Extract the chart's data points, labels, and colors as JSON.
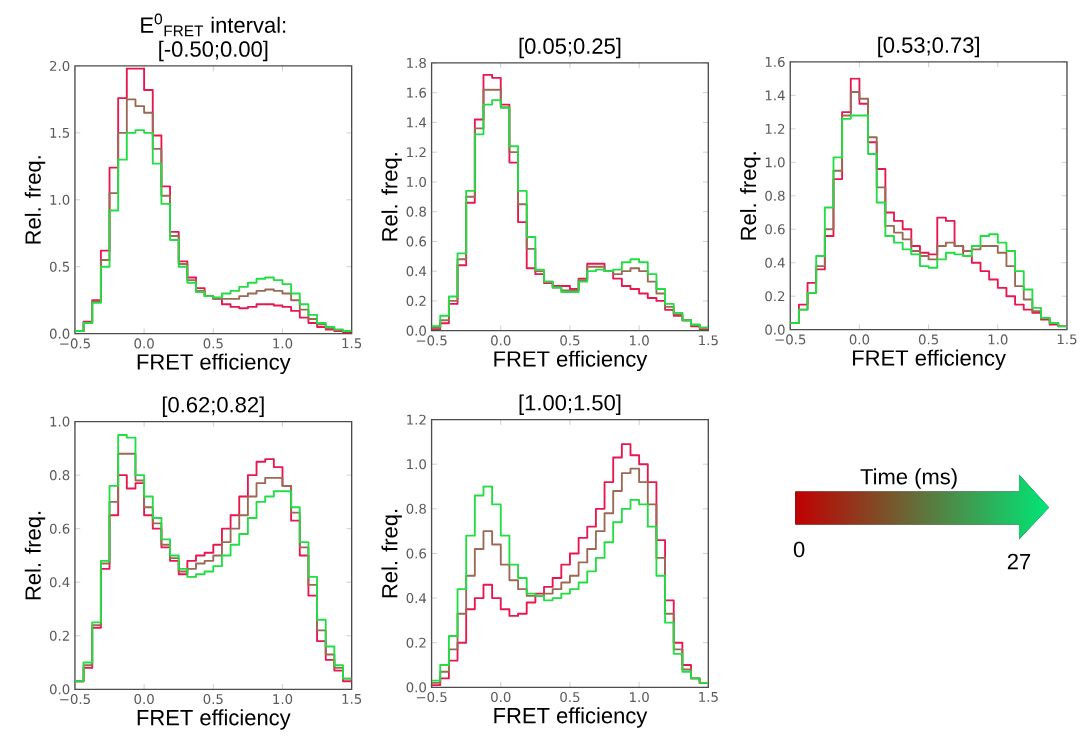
{
  "chart_data": [
    {
      "type": "histogram",
      "title": "E$^{0}$$_{FRET}$ interval:",
      "subtitle": "[-0.50;0.00]",
      "xlabel": "FRET efficiency",
      "ylabel": "Rel. freq.",
      "bins": [
        -0.5,
        -0.4375,
        -0.375,
        -0.3125,
        -0.25,
        -0.1875,
        -0.125,
        -0.0625,
        0,
        0.0625,
        0.125,
        0.1875,
        0.25,
        0.3125,
        0.375,
        0.4375,
        0.5,
        0.5625,
        0.625,
        0.6875,
        0.75,
        0.8125,
        0.875,
        0.9375,
        1,
        1.0625,
        1.125,
        1.1875,
        1.25,
        1.3125,
        1.375,
        1.4375,
        1.5
      ],
      "xlim": [
        -0.5,
        1.5
      ],
      "ylim": [
        0,
        2
      ],
      "xticks": [
        {
          "value": -0.5,
          "label": "−0.5"
        },
        {
          "value": 0,
          "label": "0.0"
        },
        {
          "value": 0.5,
          "label": "0.5"
        },
        {
          "value": 1,
          "label": "1.0"
        },
        {
          "value": 1.5,
          "label": "1.5"
        }
      ],
      "yticks": [
        {
          "value": 0,
          "label": "0.0"
        },
        {
          "value": 0.5,
          "label": "0.5"
        },
        {
          "value": 1,
          "label": "1.0"
        },
        {
          "value": 1.5,
          "label": "1.5"
        },
        {
          "value": 2,
          "label": "2.0"
        }
      ],
      "series": [
        {
          "color": "#e8174f",
          "values": [
            0.02,
            0.09,
            0.25,
            0.62,
            1.24,
            1.76,
            1.98,
            1.98,
            1.82,
            1.48,
            1.1,
            0.76,
            0.54,
            0.42,
            0.34,
            0.28,
            0.26,
            0.22,
            0.2,
            0.19,
            0.2,
            0.22,
            0.22,
            0.21,
            0.2,
            0.17,
            0.12,
            0.08,
            0.05,
            0.03,
            0.02,
            0.01
          ]
        },
        {
          "color": "#9a6a55",
          "values": [
            0.02,
            0.08,
            0.24,
            0.55,
            1.05,
            1.5,
            1.75,
            1.7,
            1.65,
            1.38,
            1.03,
            0.73,
            0.52,
            0.4,
            0.32,
            0.28,
            0.26,
            0.26,
            0.26,
            0.28,
            0.3,
            0.32,
            0.33,
            0.32,
            0.3,
            0.25,
            0.18,
            0.11,
            0.07,
            0.04,
            0.03,
            0.02
          ]
        },
        {
          "color": "#22dd44",
          "values": [
            0.02,
            0.08,
            0.23,
            0.5,
            0.92,
            1.3,
            1.5,
            1.52,
            1.5,
            1.27,
            0.97,
            0.7,
            0.5,
            0.38,
            0.31,
            0.28,
            0.27,
            0.3,
            0.32,
            0.35,
            0.38,
            0.41,
            0.42,
            0.4,
            0.37,
            0.3,
            0.22,
            0.14,
            0.08,
            0.05,
            0.03,
            0.02
          ]
        }
      ]
    },
    {
      "type": "histogram",
      "title": "[0.05;0.25]",
      "xlabel": "FRET efficiency",
      "ylabel": "Rel. freq.",
      "bins": [
        -0.5,
        -0.4375,
        -0.375,
        -0.3125,
        -0.25,
        -0.1875,
        -0.125,
        -0.0625,
        0,
        0.0625,
        0.125,
        0.1875,
        0.25,
        0.3125,
        0.375,
        0.4375,
        0.5,
        0.5625,
        0.625,
        0.6875,
        0.75,
        0.8125,
        0.875,
        0.9375,
        1,
        1.0625,
        1.125,
        1.1875,
        1.25,
        1.3125,
        1.375,
        1.4375,
        1.5
      ],
      "xlim": [
        -0.5,
        1.5
      ],
      "ylim": [
        0,
        1.8
      ],
      "xticks": [
        {
          "value": -0.5,
          "label": "−0.5"
        },
        {
          "value": 0,
          "label": "0.0"
        },
        {
          "value": 0.5,
          "label": "0.5"
        },
        {
          "value": 1,
          "label": "1.0"
        },
        {
          "value": 1.5,
          "label": "1.5"
        }
      ],
      "yticks": [
        {
          "value": 0,
          "label": "0.0"
        },
        {
          "value": 0.2,
          "label": "0.2"
        },
        {
          "value": 0.4,
          "label": "0.4"
        },
        {
          "value": 0.6,
          "label": "0.6"
        },
        {
          "value": 0.8,
          "label": "0.8"
        },
        {
          "value": 1,
          "label": "1.0"
        },
        {
          "value": 1.2,
          "label": "1.2"
        },
        {
          "value": 1.4,
          "label": "1.4"
        },
        {
          "value": 1.6,
          "label": "1.6"
        },
        {
          "value": 1.8,
          "label": "1.8"
        }
      ],
      "series": [
        {
          "color": "#e8174f",
          "values": [
            0.01,
            0.05,
            0.18,
            0.44,
            0.86,
            1.42,
            1.72,
            1.7,
            1.52,
            1.13,
            0.73,
            0.42,
            0.38,
            0.32,
            0.3,
            0.3,
            0.28,
            0.35,
            0.45,
            0.45,
            0.4,
            0.35,
            0.3,
            0.28,
            0.25,
            0.22,
            0.2,
            0.14,
            0.1,
            0.07,
            0.03,
            0.01
          ]
        },
        {
          "color": "#9a6a55",
          "values": [
            0.02,
            0.07,
            0.2,
            0.48,
            0.9,
            1.36,
            1.62,
            1.62,
            1.5,
            1.2,
            0.85,
            0.55,
            0.4,
            0.33,
            0.29,
            0.27,
            0.27,
            0.34,
            0.43,
            0.43,
            0.4,
            0.38,
            0.4,
            0.42,
            0.4,
            0.33,
            0.25,
            0.16,
            0.11,
            0.07,
            0.04,
            0.02
          ]
        },
        {
          "color": "#22dd44",
          "values": [
            0.03,
            0.1,
            0.23,
            0.52,
            0.94,
            1.32,
            1.52,
            1.55,
            1.5,
            1.24,
            0.94,
            0.63,
            0.41,
            0.33,
            0.29,
            0.26,
            0.26,
            0.33,
            0.4,
            0.41,
            0.4,
            0.41,
            0.46,
            0.48,
            0.46,
            0.38,
            0.28,
            0.18,
            0.12,
            0.07,
            0.04,
            0.02
          ]
        }
      ]
    },
    {
      "type": "histogram",
      "title": "[0.53;0.73]",
      "xlabel": "FRET efficiency",
      "ylabel": "Rel. freq.",
      "bins": [
        -0.5,
        -0.4375,
        -0.375,
        -0.3125,
        -0.25,
        -0.1875,
        -0.125,
        -0.0625,
        0,
        0.0625,
        0.125,
        0.1875,
        0.25,
        0.3125,
        0.375,
        0.4375,
        0.5,
        0.5625,
        0.625,
        0.6875,
        0.75,
        0.8125,
        0.875,
        0.9375,
        1,
        1.0625,
        1.125,
        1.1875,
        1.25,
        1.3125,
        1.375,
        1.4375,
        1.5
      ],
      "xlim": [
        -0.5,
        1.5
      ],
      "ylim": [
        0,
        1.6
      ],
      "xticks": [
        {
          "value": -0.5,
          "label": "−0.5"
        },
        {
          "value": 0,
          "label": "0.0"
        },
        {
          "value": 0.5,
          "label": "0.5"
        },
        {
          "value": 1,
          "label": "1.0"
        },
        {
          "value": 1.5,
          "label": "1.5"
        }
      ],
      "yticks": [
        {
          "value": 0,
          "label": "0.0"
        },
        {
          "value": 0.2,
          "label": "0.2"
        },
        {
          "value": 0.4,
          "label": "0.4"
        },
        {
          "value": 0.6,
          "label": "0.6"
        },
        {
          "value": 0.8,
          "label": "0.8"
        },
        {
          "value": 1,
          "label": "1.0"
        },
        {
          "value": 1.2,
          "label": "1.2"
        },
        {
          "value": 1.4,
          "label": "1.4"
        },
        {
          "value": 1.6,
          "label": "1.6"
        }
      ],
      "series": [
        {
          "color": "#e8174f",
          "values": [
            0.04,
            0.15,
            0.28,
            0.36,
            0.56,
            0.9,
            1.3,
            1.5,
            1.35,
            1.12,
            0.96,
            0.7,
            0.65,
            0.6,
            0.5,
            0.46,
            0.45,
            0.67,
            0.65,
            0.5,
            0.44,
            0.4,
            0.35,
            0.3,
            0.25,
            0.2,
            0.15,
            0.12,
            0.1,
            0.06,
            0.03,
            0.02
          ]
        },
        {
          "color": "#9a6a55",
          "values": [
            0.04,
            0.12,
            0.22,
            0.38,
            0.6,
            0.95,
            1.28,
            1.42,
            1.38,
            1.15,
            0.85,
            0.62,
            0.58,
            0.54,
            0.47,
            0.44,
            0.42,
            0.5,
            0.52,
            0.5,
            0.47,
            0.48,
            0.5,
            0.5,
            0.46,
            0.38,
            0.26,
            0.18,
            0.11,
            0.07,
            0.04,
            0.02
          ]
        },
        {
          "color": "#22dd44",
          "values": [
            0.04,
            0.12,
            0.22,
            0.44,
            0.73,
            1.03,
            1.26,
            1.28,
            1.28,
            1.05,
            0.76,
            0.56,
            0.52,
            0.48,
            0.45,
            0.38,
            0.37,
            0.42,
            0.46,
            0.45,
            0.44,
            0.5,
            0.56,
            0.57,
            0.52,
            0.47,
            0.35,
            0.24,
            0.13,
            0.07,
            0.04,
            0.02
          ]
        }
      ]
    },
    {
      "type": "histogram",
      "title": "[0.62;0.82]",
      "xlabel": "FRET efficiency",
      "ylabel": "Rel. freq.",
      "bins": [
        -0.5,
        -0.4375,
        -0.375,
        -0.3125,
        -0.25,
        -0.1875,
        -0.125,
        -0.0625,
        0,
        0.0625,
        0.125,
        0.1875,
        0.25,
        0.3125,
        0.375,
        0.4375,
        0.5,
        0.5625,
        0.625,
        0.6875,
        0.75,
        0.8125,
        0.875,
        0.9375,
        1,
        1.0625,
        1.125,
        1.1875,
        1.25,
        1.3125,
        1.375,
        1.4375,
        1.5
      ],
      "xlim": [
        -0.5,
        1.5
      ],
      "ylim": [
        0,
        1
      ],
      "xticks": [
        {
          "value": -0.5,
          "label": "−0.5"
        },
        {
          "value": 0,
          "label": "0.0"
        },
        {
          "value": 0.5,
          "label": "0.5"
        },
        {
          "value": 1,
          "label": "1.0"
        },
        {
          "value": 1.5,
          "label": "1.5"
        }
      ],
      "yticks": [
        {
          "value": 0,
          "label": "0.0"
        },
        {
          "value": 0.2,
          "label": "0.2"
        },
        {
          "value": 0.4,
          "label": "0.4"
        },
        {
          "value": 0.6,
          "label": "0.6"
        },
        {
          "value": 0.8,
          "label": "0.8"
        },
        {
          "value": 1,
          "label": "1.0"
        }
      ],
      "series": [
        {
          "color": "#e8174f",
          "values": [
            0.03,
            0.08,
            0.23,
            0.45,
            0.65,
            0.8,
            0.75,
            0.77,
            0.65,
            0.6,
            0.53,
            0.48,
            0.43,
            0.48,
            0.5,
            0.51,
            0.54,
            0.6,
            0.65,
            0.72,
            0.8,
            0.85,
            0.86,
            0.83,
            0.76,
            0.63,
            0.5,
            0.35,
            0.18,
            0.11,
            0.07,
            0.03
          ]
        },
        {
          "color": "#9a6a55",
          "values": [
            0.03,
            0.09,
            0.24,
            0.47,
            0.7,
            0.88,
            0.88,
            0.78,
            0.68,
            0.62,
            0.54,
            0.49,
            0.44,
            0.45,
            0.47,
            0.48,
            0.5,
            0.55,
            0.6,
            0.65,
            0.72,
            0.77,
            0.79,
            0.79,
            0.76,
            0.66,
            0.53,
            0.39,
            0.22,
            0.13,
            0.08,
            0.04
          ]
        },
        {
          "color": "#22dd44",
          "values": [
            0.03,
            0.1,
            0.25,
            0.48,
            0.76,
            0.95,
            0.94,
            0.8,
            0.72,
            0.64,
            0.56,
            0.5,
            0.45,
            0.42,
            0.43,
            0.44,
            0.46,
            0.5,
            0.54,
            0.58,
            0.64,
            0.7,
            0.72,
            0.74,
            0.74,
            0.68,
            0.55,
            0.42,
            0.26,
            0.16,
            0.09,
            0.04
          ]
        }
      ]
    },
    {
      "type": "histogram",
      "title": "[1.00;1.50]",
      "xlabel": "FRET efficiency",
      "ylabel": "Rel. freq.",
      "bins": [
        -0.5,
        -0.4375,
        -0.375,
        -0.3125,
        -0.25,
        -0.1875,
        -0.125,
        -0.0625,
        0,
        0.0625,
        0.125,
        0.1875,
        0.25,
        0.3125,
        0.375,
        0.4375,
        0.5,
        0.5625,
        0.625,
        0.6875,
        0.75,
        0.8125,
        0.875,
        0.9375,
        1,
        1.0625,
        1.125,
        1.1875,
        1.25,
        1.3125,
        1.375,
        1.4375,
        1.5
      ],
      "xlim": [
        -0.5,
        1.5
      ],
      "ylim": [
        0,
        1.2
      ],
      "xticks": [
        {
          "value": -0.5,
          "label": "−0.5"
        },
        {
          "value": 0,
          "label": "0.0"
        },
        {
          "value": 0.5,
          "label": "0.5"
        },
        {
          "value": 1,
          "label": "1.0"
        },
        {
          "value": 1.5,
          "label": "1.5"
        }
      ],
      "yticks": [
        {
          "value": 0,
          "label": "0.0"
        },
        {
          "value": 0.2,
          "label": "0.2"
        },
        {
          "value": 0.4,
          "label": "0.4"
        },
        {
          "value": 0.6,
          "label": "0.6"
        },
        {
          "value": 0.8,
          "label": "0.8"
        },
        {
          "value": 1,
          "label": "1.0"
        },
        {
          "value": 1.2,
          "label": "1.2"
        }
      ],
      "series": [
        {
          "color": "#e8174f",
          "values": [
            0.01,
            0.04,
            0.12,
            0.2,
            0.35,
            0.4,
            0.46,
            0.4,
            0.35,
            0.32,
            0.33,
            0.38,
            0.42,
            0.45,
            0.49,
            0.55,
            0.6,
            0.67,
            0.72,
            0.8,
            0.92,
            1.03,
            1.09,
            1.04,
            1.0,
            0.92,
            0.66,
            0.39,
            0.2,
            0.1,
            0.04,
            0.02
          ]
        },
        {
          "color": "#9a6a55",
          "values": [
            0.02,
            0.07,
            0.17,
            0.33,
            0.5,
            0.62,
            0.7,
            0.64,
            0.55,
            0.48,
            0.44,
            0.41,
            0.41,
            0.42,
            0.44,
            0.47,
            0.5,
            0.56,
            0.62,
            0.7,
            0.78,
            0.88,
            0.96,
            0.98,
            0.92,
            0.82,
            0.58,
            0.33,
            0.17,
            0.08,
            0.04,
            0.02
          ]
        },
        {
          "color": "#22dd44",
          "values": [
            0.03,
            0.1,
            0.23,
            0.44,
            0.68,
            0.86,
            0.9,
            0.82,
            0.68,
            0.55,
            0.49,
            0.42,
            0.41,
            0.39,
            0.4,
            0.42,
            0.44,
            0.47,
            0.52,
            0.58,
            0.65,
            0.74,
            0.8,
            0.84,
            0.82,
            0.72,
            0.5,
            0.29,
            0.15,
            0.07,
            0.04,
            0.02
          ]
        }
      ]
    },
    {
      "type": "other",
      "title": "Time (ms)",
      "annotations": [
        "0",
        "27"
      ],
      "colors": [
        "#c00000",
        "#00e676"
      ]
    }
  ]
}
